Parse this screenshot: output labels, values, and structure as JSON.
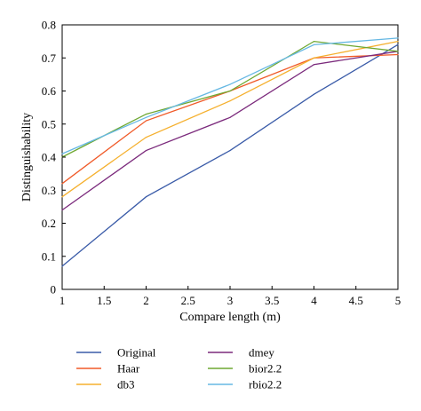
{
  "chart_data": {
    "type": "line",
    "title": "",
    "xlabel": "Compare length (m)",
    "ylabel": "Distinguishability",
    "xlim": [
      1,
      5
    ],
    "ylim": [
      0,
      0.8
    ],
    "xticks": [
      "1",
      "1.5",
      "2",
      "2.5",
      "3",
      "3.5",
      "4",
      "4.5",
      "5"
    ],
    "yticks": [
      "0",
      "0.1",
      "0.2",
      "0.3",
      "0.4",
      "0.5",
      "0.6",
      "0.7",
      "0.8"
    ],
    "x": [
      1,
      2,
      3,
      4,
      5
    ],
    "grid": false,
    "legend_position": "bottom",
    "series": [
      {
        "name": "Original",
        "color": "#3a5ba8",
        "values": [
          0.07,
          0.28,
          0.42,
          0.59,
          0.74
        ]
      },
      {
        "name": "Haar",
        "color": "#f05a28",
        "values": [
          0.32,
          0.51,
          0.6,
          0.7,
          0.71
        ]
      },
      {
        "name": "db3",
        "color": "#f5b02e",
        "values": [
          0.28,
          0.46,
          0.57,
          0.7,
          0.75
        ]
      },
      {
        "name": "dmey",
        "color": "#7b2a7c",
        "values": [
          0.24,
          0.42,
          0.52,
          0.68,
          0.72
        ]
      },
      {
        "name": "bior2.2",
        "color": "#6fa832",
        "values": [
          0.4,
          0.53,
          0.6,
          0.75,
          0.72
        ]
      },
      {
        "name": "rbio2.2",
        "color": "#66b8e3",
        "values": [
          0.41,
          0.52,
          0.62,
          0.74,
          0.76
        ]
      }
    ]
  }
}
